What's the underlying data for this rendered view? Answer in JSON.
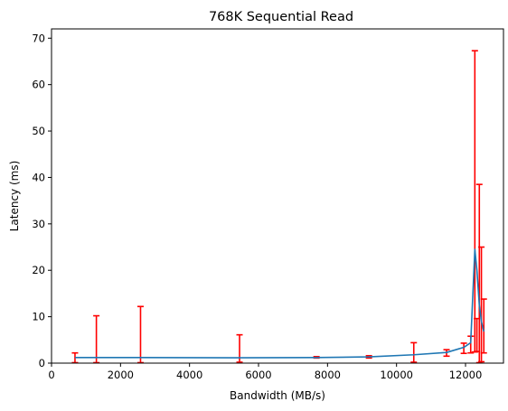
{
  "chart_data": {
    "type": "line",
    "title": "768K  Sequential Read",
    "xlabel": "Bandwidth (MB/s)",
    "ylabel": "Latency (ms)",
    "xlim": [
      0,
      13100
    ],
    "ylim": [
      0,
      72
    ],
    "xticks": [
      0,
      2000,
      4000,
      6000,
      8000,
      10000,
      12000
    ],
    "yticks": [
      0,
      10,
      20,
      30,
      40,
      50,
      60,
      70
    ],
    "grid": false,
    "colors": {
      "line": "#1f77b4",
      "errorbar": "#ff0000"
    },
    "series": [
      {
        "points": [
          {
            "x": 680,
            "y": 1.2,
            "ylow": 0.1,
            "yhigh": 2.2
          },
          {
            "x": 1300,
            "y": 1.2,
            "ylow": 0.1,
            "yhigh": 10.2
          },
          {
            "x": 2580,
            "y": 1.2,
            "ylow": 0.1,
            "yhigh": 12.2
          },
          {
            "x": 5450,
            "y": 1.15,
            "ylow": 0.2,
            "yhigh": 6.1
          },
          {
            "x": 7680,
            "y": 1.2,
            "ylow": 1.1,
            "yhigh": 1.4
          },
          {
            "x": 9200,
            "y": 1.35,
            "ylow": 1.1,
            "yhigh": 1.6
          },
          {
            "x": 10500,
            "y": 1.8,
            "ylow": 0.2,
            "yhigh": 4.4
          },
          {
            "x": 11450,
            "y": 2.3,
            "ylow": 1.5,
            "yhigh": 2.9
          },
          {
            "x": 11950,
            "y": 3.4,
            "ylow": 2.1,
            "yhigh": 4.3
          },
          {
            "x": 12150,
            "y": 4.4,
            "ylow": 2.2,
            "yhigh": 5.8
          },
          {
            "x": 12270,
            "y": 24.5,
            "ylow": 2.4,
            "yhigh": 67.3
          },
          {
            "x": 12330,
            "y": 20.0,
            "ylow": 2.5,
            "yhigh": 9.6
          },
          {
            "x": 12400,
            "y": 12.5,
            "ylow": 0.1,
            "yhigh": 38.5
          },
          {
            "x": 12460,
            "y": 9.0,
            "ylow": 0.3,
            "yhigh": 25.0
          },
          {
            "x": 12530,
            "y": 6.8,
            "ylow": 2.2,
            "yhigh": 13.8
          }
        ]
      }
    ]
  }
}
